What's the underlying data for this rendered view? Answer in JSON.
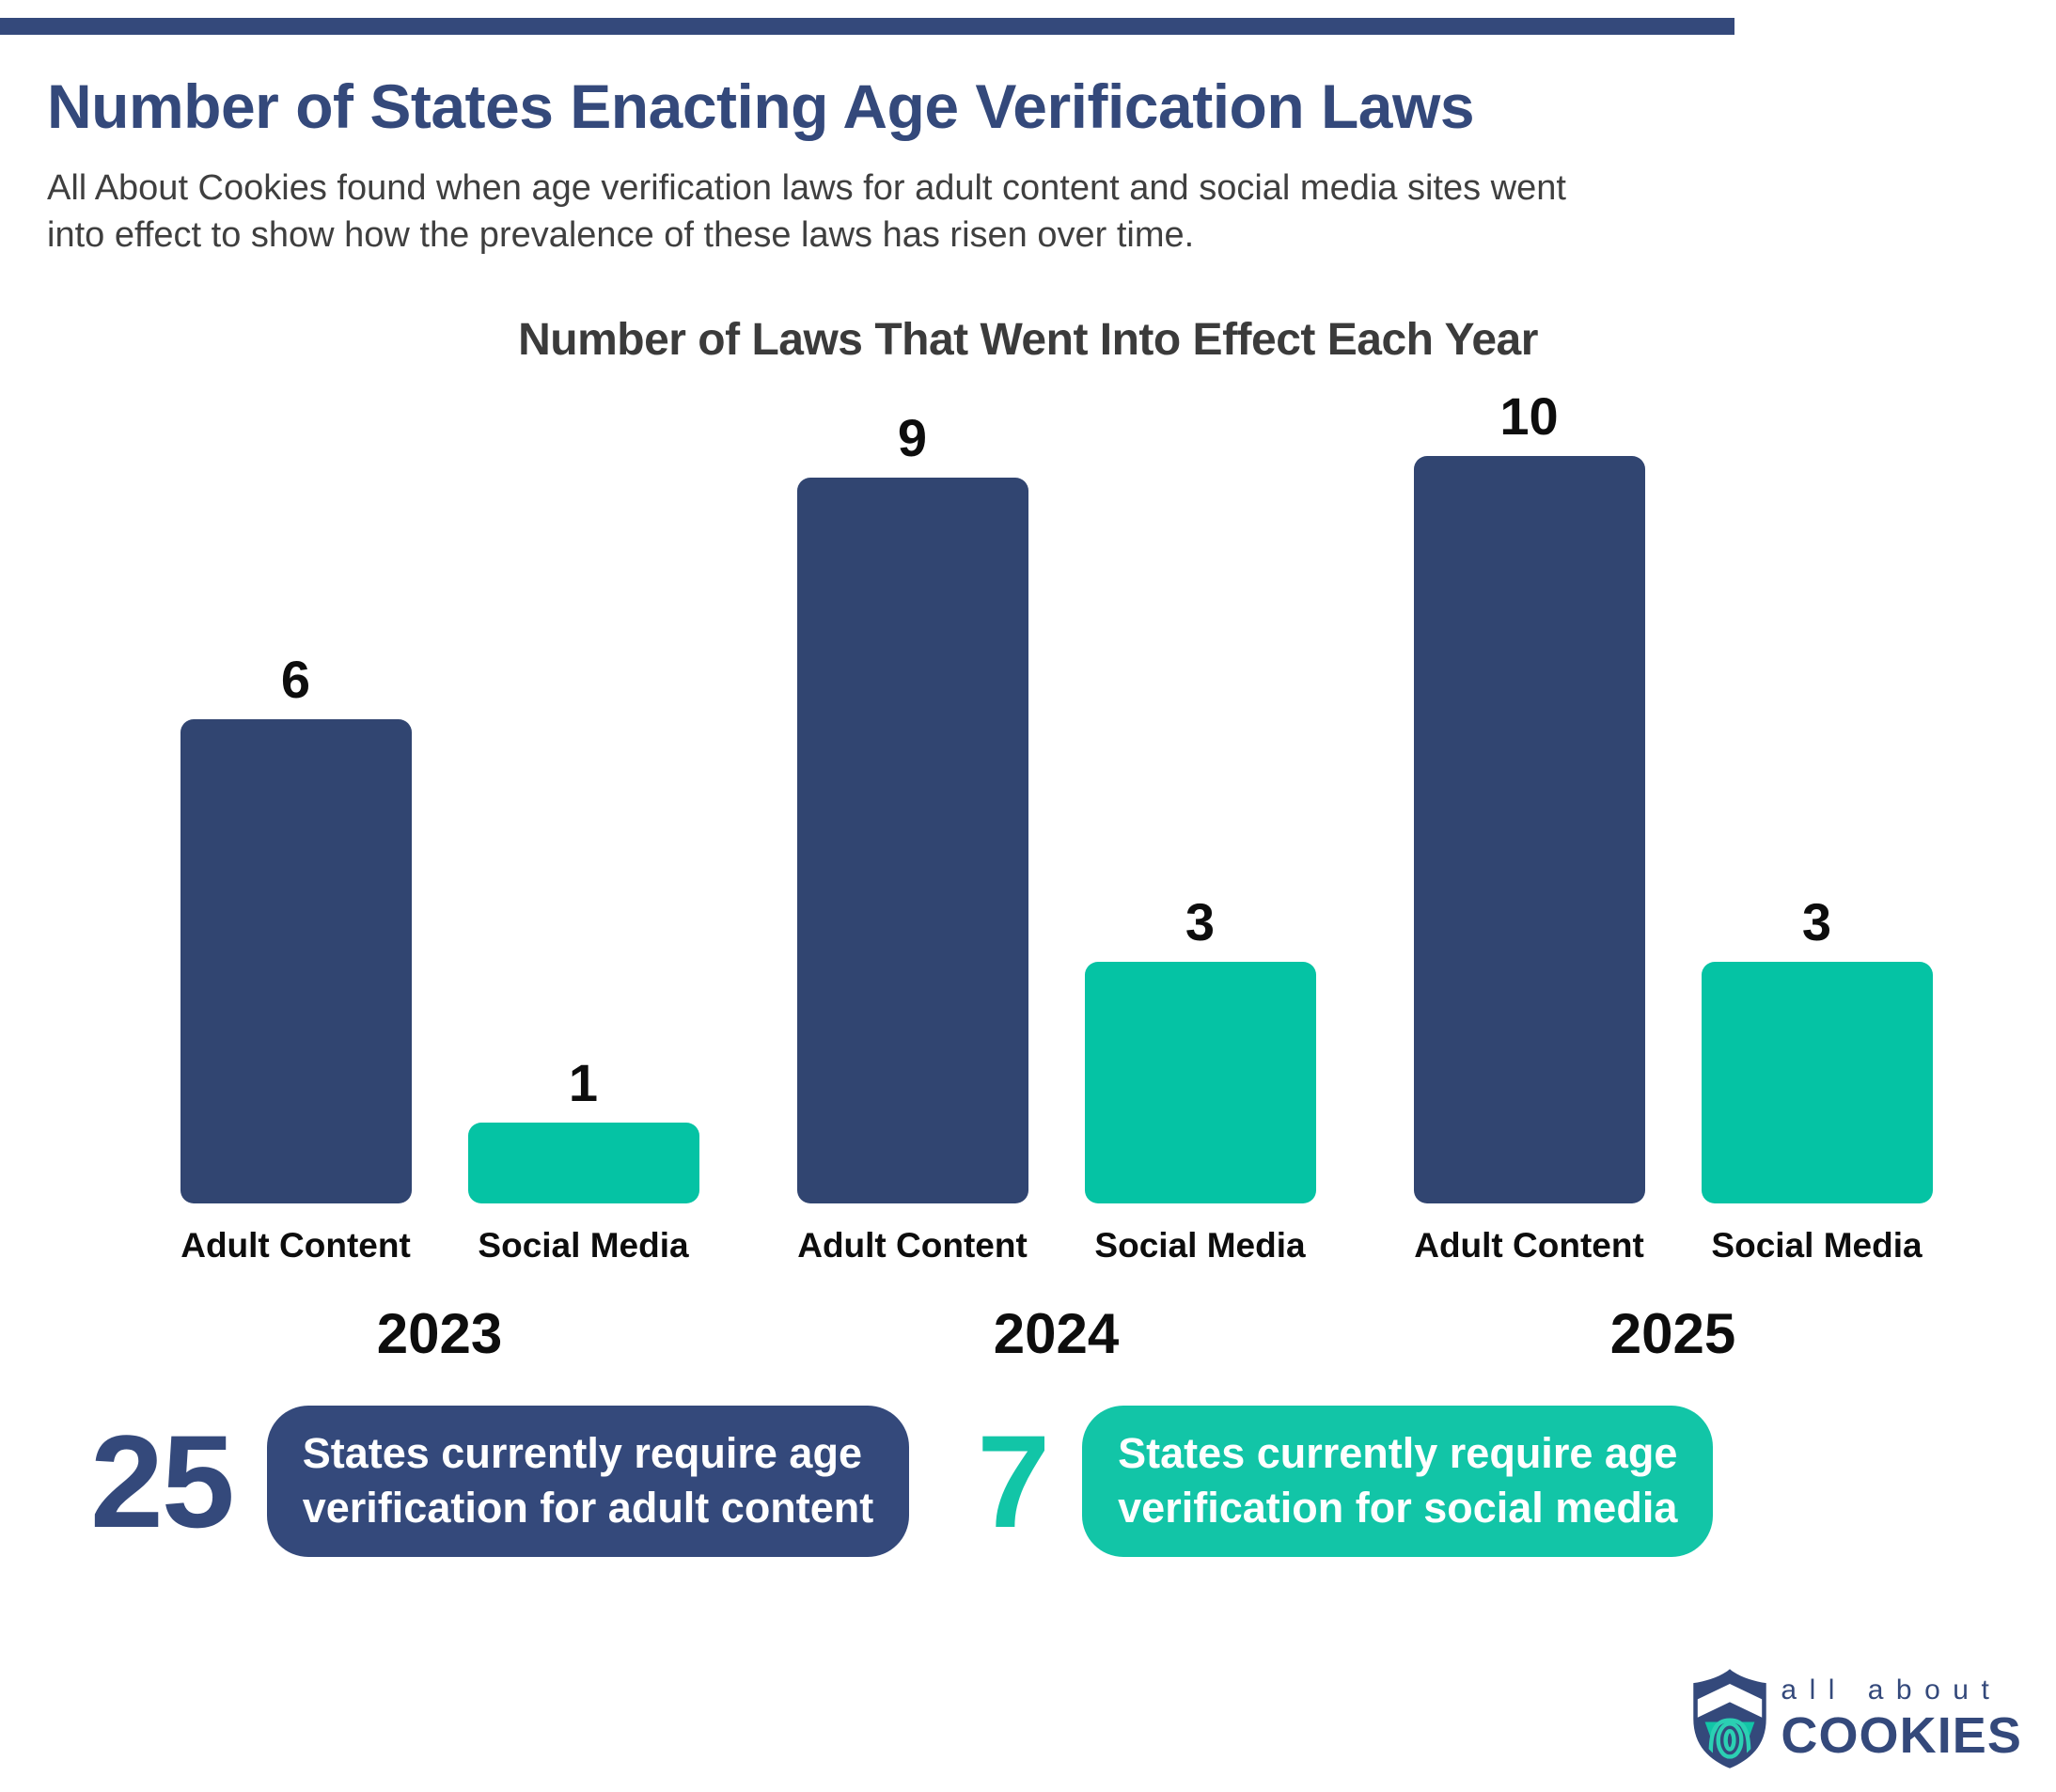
{
  "colors": {
    "navy": "#34497B",
    "navy_bar": "#314571",
    "teal_bar": "#05C3A4",
    "teal_accent": "#12C5A7",
    "label_black": "#0D0D0D",
    "chart_title_gray": "#3B3B3B",
    "subtitle_gray": "#3F3F3F",
    "white": "#FFFFFF"
  },
  "header": {
    "title": "Number of States Enacting Age Verification Laws",
    "subtitle_lines": [
      "All About Cookies found when age verification laws for adult content and social media sites went",
      "into effect to show how the prevalence of these laws has risen over time."
    ]
  },
  "chart_data": {
    "type": "bar",
    "title": "Number of Laws That Went Into Effect Each Year",
    "categories": [
      "2023",
      "2024",
      "2025"
    ],
    "series": [
      {
        "name": "Adult Content",
        "values": [
          6,
          9,
          10
        ],
        "color_key": "navy_bar"
      },
      {
        "name": "Social Media",
        "values": [
          1,
          3,
          3
        ],
        "color_key": "teal_bar"
      }
    ],
    "ylim": [
      0,
      10
    ],
    "value_labels_shown": true,
    "grid": false,
    "axes_shown": false,
    "legend_position": "none"
  },
  "stats": [
    {
      "number": "25",
      "lines": [
        "States currently require age",
        "verification for adult content"
      ],
      "number_color_key": "navy",
      "pill_color_key": "navy"
    },
    {
      "number": "7",
      "lines": [
        "States currently require age",
        "verification for social media"
      ],
      "number_color_key": "teal_accent",
      "pill_color_key": "teal_accent"
    }
  ],
  "logo": {
    "top_text": "all about",
    "bottom_text": "COOKIES"
  }
}
